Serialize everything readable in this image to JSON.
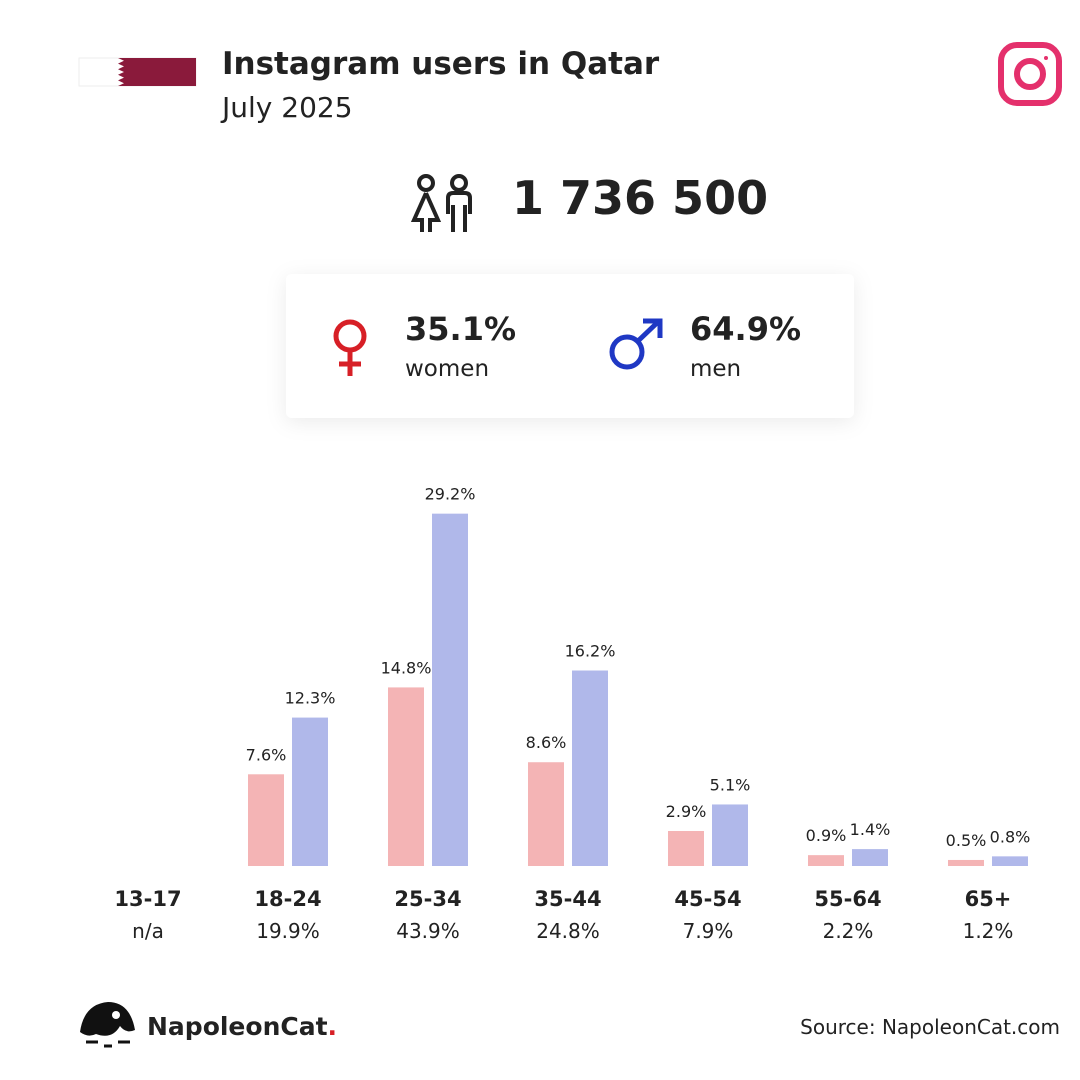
{
  "header": {
    "title": "Instagram users in Qatar",
    "subtitle": "July 2025"
  },
  "stats": {
    "total": "1 736 500",
    "women": {
      "share": "35.1%",
      "label": "women"
    },
    "men": {
      "share": "64.9%",
      "label": "men"
    }
  },
  "chart_data": {
    "type": "bar",
    "categories": [
      "13-17",
      "18-24",
      "25-34",
      "35-44",
      "45-54",
      "55-64",
      "65+"
    ],
    "category_totals": [
      "n/a",
      "19.9%",
      "43.9%",
      "24.8%",
      "7.9%",
      "2.2%",
      "1.2%"
    ],
    "series": [
      {
        "color": "#f4b4b5",
        "values": [
          null,
          7.6,
          14.8,
          8.6,
          2.9,
          0.9,
          0.5
        ],
        "value_labels": [
          null,
          "7.6%",
          "14.8%",
          "8.6%",
          "2.9%",
          "0.9%",
          "0.5%"
        ]
      },
      {
        "color": "#b0b8ea",
        "values": [
          null,
          12.3,
          29.2,
          16.2,
          5.1,
          1.4,
          0.8
        ],
        "value_labels": [
          null,
          "12.3%",
          "29.2%",
          "16.2%",
          "5.1%",
          "1.4%",
          "0.8%"
        ]
      }
    ],
    "ylim": [
      0,
      30
    ]
  },
  "footer": {
    "brand": {
      "name": "NapoleonCat",
      "dot": "."
    },
    "source": "Source: NapoleonCat.com"
  }
}
